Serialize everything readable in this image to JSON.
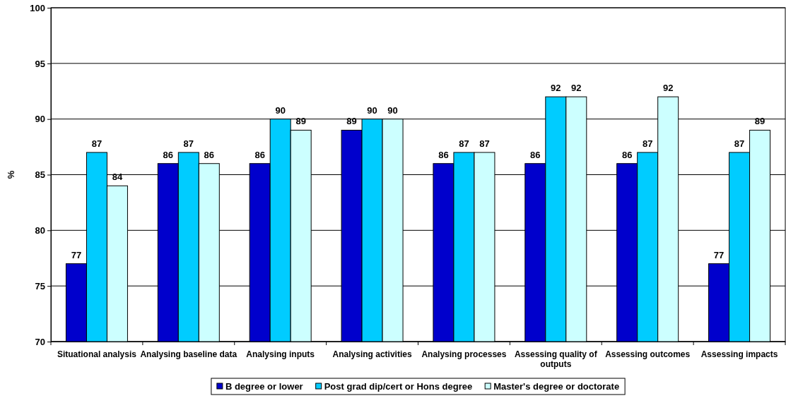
{
  "chart_data": {
    "type": "bar",
    "ylabel": "%",
    "categories": [
      "Situational analysis",
      "Analysing baseline data",
      "Analysing inputs",
      "Analysing activities",
      "Analysing processes",
      "Assessing quality of outputs",
      "Assessing outcomes",
      "Assessing impacts"
    ],
    "series": [
      {
        "name": "B degree or lower",
        "color": "#0000cc",
        "values": [
          77,
          86,
          86,
          89,
          86,
          86,
          86,
          77
        ]
      },
      {
        "name": "Post grad dip/cert or Hons degree",
        "color": "#00ccff",
        "values": [
          87,
          87,
          90,
          90,
          87,
          92,
          87,
          87
        ]
      },
      {
        "name": "Master's degree or doctorate",
        "color": "#ccffff",
        "values": [
          84,
          86,
          89,
          90,
          87,
          92,
          92,
          89
        ]
      }
    ],
    "ylim": [
      70,
      100
    ],
    "yticks": [
      70,
      75,
      80,
      85,
      90,
      95,
      100
    ],
    "grid": "y",
    "legend": "bottom",
    "data_labels": true
  }
}
